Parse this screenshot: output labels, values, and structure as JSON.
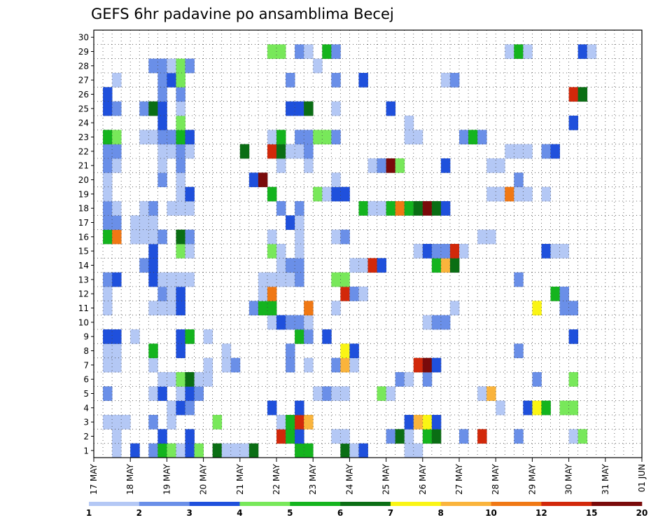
{
  "chart_data": {
    "type": "heatmap",
    "title": "GEFS 6hr padavine po ansamblima Becej",
    "xlabel": "",
    "ylabel": "",
    "y_categories": [
      "1",
      "2",
      "3",
      "4",
      "5",
      "6",
      "7",
      "8",
      "9",
      "10",
      "11",
      "12",
      "13",
      "14",
      "15",
      "16",
      "17",
      "18",
      "19",
      "20",
      "21",
      "22",
      "23",
      "24",
      "25",
      "26",
      "27",
      "28",
      "29",
      "30"
    ],
    "x_tick_labels": [
      "17 MAY",
      "18 MAY",
      "19 MAY",
      "20 MAY",
      "21 MAY",
      "22 MAY",
      "23 MAY",
      "24 MAY",
      "25 MAY",
      "26 MAY",
      "27 MAY",
      "28 MAY",
      "29 MAY",
      "30 MAY",
      "31 MAY",
      "01 JUN"
    ],
    "steps_per_day": 4,
    "grid": "dotted",
    "colorbar": {
      "position": "bottom",
      "tick_labels": [
        "1",
        "2",
        "3",
        "4",
        "5",
        "6",
        "7",
        "8",
        "10",
        "12",
        "15",
        "20"
      ],
      "colors": [
        "#b4c8f5",
        "#6a8fe8",
        "#1f50dc",
        "#78e85a",
        "#14b41e",
        "#0a6e14",
        "#faf514",
        "#fab43c",
        "#f07814",
        "#d2280a",
        "#7a0a0a"
      ]
    },
    "cells": [
      [
        2,
        1,
        1
      ],
      [
        2,
        2,
        1
      ],
      [
        4,
        1,
        1
      ],
      [
        4,
        1,
        3
      ],
      [
        6,
        1,
        2
      ],
      [
        7,
        1,
        5
      ],
      [
        8,
        1,
        4
      ],
      [
        9,
        1,
        1
      ],
      [
        10,
        1,
        3
      ],
      [
        11,
        1,
        4
      ],
      [
        13,
        1,
        6
      ],
      [
        14,
        1,
        1
      ],
      [
        15,
        1,
        1
      ],
      [
        16,
        1,
        1
      ],
      [
        17,
        1,
        6
      ],
      [
        22,
        1,
        5
      ],
      [
        23,
        1,
        5
      ],
      [
        27,
        1,
        6
      ],
      [
        28,
        1,
        1
      ],
      [
        29,
        1,
        3
      ],
      [
        34,
        1,
        1
      ],
      [
        35,
        1,
        1
      ],
      [
        2,
        2,
        1
      ],
      [
        7,
        2,
        3
      ],
      [
        10,
        2,
        3
      ],
      [
        20,
        2,
        9
      ],
      [
        20,
        2,
        10
      ],
      [
        21,
        2,
        9
      ],
      [
        21,
        2,
        5
      ],
      [
        22,
        2,
        6
      ],
      [
        22,
        2,
        3
      ],
      [
        26,
        2,
        1
      ],
      [
        27,
        2,
        1
      ],
      [
        32,
        2,
        2
      ],
      [
        33,
        2,
        6
      ],
      [
        34,
        2,
        1
      ],
      [
        36,
        2,
        5
      ],
      [
        37,
        2,
        6
      ],
      [
        40,
        2,
        2
      ],
      [
        42,
        2,
        10
      ],
      [
        46,
        2,
        2
      ],
      [
        52,
        2,
        1
      ],
      [
        53,
        2,
        4
      ],
      [
        1,
        3,
        1
      ],
      [
        2,
        3,
        1
      ],
      [
        3,
        3,
        1
      ],
      [
        6,
        3,
        2
      ],
      [
        8,
        3,
        1
      ],
      [
        13,
        3,
        4
      ],
      [
        20,
        3,
        1
      ],
      [
        21,
        3,
        5
      ],
      [
        22,
        3,
        10
      ],
      [
        23,
        3,
        8
      ],
      [
        34,
        3,
        3
      ],
      [
        35,
        3,
        8
      ],
      [
        36,
        3,
        7
      ],
      [
        37,
        3,
        3
      ],
      [
        8,
        4,
        1
      ],
      [
        9,
        4,
        3
      ],
      [
        10,
        4,
        2
      ],
      [
        19,
        4,
        3
      ],
      [
        22,
        4,
        3
      ],
      [
        44,
        4,
        1
      ],
      [
        47,
        4,
        3
      ],
      [
        48,
        4,
        7
      ],
      [
        49,
        4,
        5
      ],
      [
        51,
        4,
        4
      ],
      [
        52,
        4,
        4
      ],
      [
        1,
        5,
        2
      ],
      [
        6,
        5,
        1
      ],
      [
        7,
        5,
        3
      ],
      [
        9,
        5,
        1
      ],
      [
        10,
        5,
        3
      ],
      [
        11,
        5,
        2
      ],
      [
        24,
        5,
        1
      ],
      [
        25,
        5,
        2
      ],
      [
        26,
        5,
        1
      ],
      [
        27,
        5,
        1
      ],
      [
        31,
        5,
        4
      ],
      [
        32,
        5,
        1
      ],
      [
        42,
        5,
        1
      ],
      [
        43,
        5,
        8
      ],
      [
        7,
        6,
        1
      ],
      [
        8,
        6,
        1
      ],
      [
        9,
        6,
        4
      ],
      [
        10,
        6,
        6
      ],
      [
        11,
        6,
        1
      ],
      [
        12,
        6,
        1
      ],
      [
        33,
        6,
        2
      ],
      [
        34,
        6,
        1
      ],
      [
        36,
        6,
        2
      ],
      [
        48,
        6,
        2
      ],
      [
        52,
        6,
        4
      ],
      [
        1,
        7,
        1
      ],
      [
        2,
        7,
        1
      ],
      [
        6,
        7,
        1
      ],
      [
        12,
        7,
        1
      ],
      [
        14,
        7,
        1
      ],
      [
        15,
        7,
        2
      ],
      [
        21,
        7,
        2
      ],
      [
        23,
        7,
        1
      ],
      [
        26,
        7,
        2
      ],
      [
        27,
        7,
        8
      ],
      [
        28,
        7,
        1
      ],
      [
        35,
        7,
        10
      ],
      [
        36,
        7,
        11
      ],
      [
        37,
        7,
        3
      ],
      [
        1,
        8,
        1
      ],
      [
        2,
        8,
        1
      ],
      [
        6,
        8,
        5
      ],
      [
        9,
        8,
        3
      ],
      [
        14,
        8,
        1
      ],
      [
        21,
        8,
        2
      ],
      [
        27,
        8,
        7
      ],
      [
        28,
        8,
        3
      ],
      [
        46,
        8,
        2
      ],
      [
        1,
        9,
        3
      ],
      [
        2,
        9,
        3
      ],
      [
        4,
        9,
        1
      ],
      [
        9,
        9,
        3
      ],
      [
        10,
        9,
        5
      ],
      [
        12,
        9,
        1
      ],
      [
        22,
        9,
        5
      ],
      [
        23,
        9,
        2
      ],
      [
        25,
        9,
        3
      ],
      [
        52,
        9,
        3
      ],
      [
        19,
        10,
        1
      ],
      [
        20,
        10,
        3
      ],
      [
        21,
        10,
        2
      ],
      [
        22,
        10,
        2
      ],
      [
        23,
        10,
        1
      ],
      [
        36,
        10,
        1
      ],
      [
        37,
        10,
        2
      ],
      [
        38,
        10,
        2
      ],
      [
        1,
        11,
        1
      ],
      [
        6,
        11,
        1
      ],
      [
        7,
        11,
        1
      ],
      [
        8,
        11,
        1
      ],
      [
        9,
        11,
        3
      ],
      [
        17,
        11,
        2
      ],
      [
        18,
        11,
        5
      ],
      [
        19,
        11,
        5
      ],
      [
        23,
        11,
        9
      ],
      [
        26,
        11,
        1
      ],
      [
        39,
        11,
        1
      ],
      [
        48,
        11,
        7
      ],
      [
        51,
        11,
        2
      ],
      [
        52,
        11,
        2
      ],
      [
        1,
        12,
        1
      ],
      [
        7,
        12,
        2
      ],
      [
        8,
        12,
        1
      ],
      [
        9,
        12,
        3
      ],
      [
        18,
        12,
        1
      ],
      [
        19,
        12,
        9
      ],
      [
        27,
        12,
        10
      ],
      [
        28,
        12,
        2
      ],
      [
        29,
        12,
        1
      ],
      [
        50,
        12,
        5
      ],
      [
        51,
        12,
        2
      ],
      [
        1,
        13,
        2
      ],
      [
        2,
        13,
        3
      ],
      [
        6,
        13,
        3
      ],
      [
        7,
        13,
        1
      ],
      [
        8,
        13,
        1
      ],
      [
        9,
        13,
        1
      ],
      [
        10,
        13,
        1
      ],
      [
        18,
        13,
        1
      ],
      [
        19,
        13,
        1
      ],
      [
        20,
        13,
        1
      ],
      [
        21,
        13,
        1
      ],
      [
        22,
        13,
        2
      ],
      [
        26,
        13,
        4
      ],
      [
        27,
        13,
        4
      ],
      [
        46,
        13,
        2
      ],
      [
        5,
        14,
        2
      ],
      [
        6,
        14,
        3
      ],
      [
        20,
        14,
        1
      ],
      [
        21,
        14,
        2
      ],
      [
        22,
        14,
        2
      ],
      [
        28,
        14,
        1
      ],
      [
        29,
        14,
        1
      ],
      [
        30,
        14,
        10
      ],
      [
        31,
        14,
        3
      ],
      [
        37,
        14,
        5
      ],
      [
        38,
        14,
        8
      ],
      [
        39,
        14,
        6
      ],
      [
        6,
        15,
        3
      ],
      [
        9,
        15,
        4
      ],
      [
        10,
        15,
        1
      ],
      [
        19,
        15,
        4
      ],
      [
        20,
        15,
        1
      ],
      [
        22,
        15,
        1
      ],
      [
        35,
        15,
        1
      ],
      [
        36,
        15,
        3
      ],
      [
        37,
        15,
        2
      ],
      [
        38,
        15,
        2
      ],
      [
        39,
        15,
        10
      ],
      [
        40,
        15,
        1
      ],
      [
        49,
        15,
        3
      ],
      [
        50,
        15,
        1
      ],
      [
        51,
        15,
        1
      ],
      [
        1,
        16,
        5
      ],
      [
        2,
        16,
        9
      ],
      [
        4,
        16,
        1
      ],
      [
        5,
        16,
        1
      ],
      [
        6,
        16,
        1
      ],
      [
        7,
        16,
        2
      ],
      [
        9,
        16,
        6
      ],
      [
        10,
        16,
        2
      ],
      [
        19,
        16,
        1
      ],
      [
        22,
        16,
        1
      ],
      [
        26,
        16,
        1
      ],
      [
        27,
        16,
        2
      ],
      [
        42,
        16,
        1
      ],
      [
        43,
        16,
        1
      ],
      [
        1,
        17,
        2
      ],
      [
        2,
        17,
        2
      ],
      [
        4,
        17,
        1
      ],
      [
        5,
        17,
        1
      ],
      [
        6,
        17,
        1
      ],
      [
        21,
        17,
        3
      ],
      [
        22,
        17,
        1
      ],
      [
        1,
        18,
        2
      ],
      [
        2,
        18,
        1
      ],
      [
        5,
        18,
        1
      ],
      [
        6,
        18,
        2
      ],
      [
        8,
        18,
        1
      ],
      [
        9,
        18,
        1
      ],
      [
        10,
        18,
        1
      ],
      [
        20,
        18,
        2
      ],
      [
        22,
        18,
        2
      ],
      [
        29,
        18,
        5
      ],
      [
        30,
        18,
        1
      ],
      [
        31,
        18,
        1
      ],
      [
        32,
        18,
        5
      ],
      [
        33,
        18,
        9
      ],
      [
        34,
        18,
        5
      ],
      [
        35,
        18,
        6
      ],
      [
        36,
        18,
        11
      ],
      [
        37,
        18,
        6
      ],
      [
        38,
        18,
        3
      ],
      [
        1,
        19,
        1
      ],
      [
        9,
        19,
        1
      ],
      [
        10,
        19,
        3
      ],
      [
        19,
        19,
        5
      ],
      [
        24,
        19,
        4
      ],
      [
        25,
        19,
        1
      ],
      [
        26,
        19,
        3
      ],
      [
        27,
        19,
        3
      ],
      [
        43,
        19,
        1
      ],
      [
        44,
        19,
        1
      ],
      [
        45,
        19,
        9
      ],
      [
        46,
        19,
        1
      ],
      [
        47,
        19,
        1
      ],
      [
        49,
        19,
        1
      ],
      [
        1,
        20,
        1
      ],
      [
        7,
        20,
        2
      ],
      [
        9,
        20,
        1
      ],
      [
        17,
        20,
        3
      ],
      [
        18,
        20,
        11
      ],
      [
        26,
        20,
        1
      ],
      [
        46,
        20,
        2
      ],
      [
        1,
        21,
        2
      ],
      [
        2,
        21,
        1
      ],
      [
        7,
        21,
        1
      ],
      [
        9,
        21,
        2
      ],
      [
        20,
        21,
        1
      ],
      [
        23,
        21,
        1
      ],
      [
        30,
        21,
        1
      ],
      [
        31,
        21,
        2
      ],
      [
        32,
        21,
        11
      ],
      [
        33,
        21,
        4
      ],
      [
        38,
        21,
        3
      ],
      [
        43,
        21,
        1
      ],
      [
        44,
        21,
        1
      ],
      [
        1,
        22,
        2
      ],
      [
        2,
        22,
        2
      ],
      [
        7,
        22,
        1
      ],
      [
        8,
        22,
        1
      ],
      [
        9,
        22,
        2
      ],
      [
        10,
        22,
        1
      ],
      [
        16,
        22,
        6
      ],
      [
        19,
        22,
        10
      ],
      [
        20,
        22,
        6
      ],
      [
        21,
        22,
        1
      ],
      [
        22,
        22,
        1
      ],
      [
        23,
        22,
        2
      ],
      [
        45,
        22,
        1
      ],
      [
        46,
        22,
        1
      ],
      [
        47,
        22,
        1
      ],
      [
        49,
        22,
        2
      ],
      [
        50,
        22,
        3
      ],
      [
        1,
        23,
        5
      ],
      [
        2,
        23,
        4
      ],
      [
        5,
        23,
        1
      ],
      [
        6,
        23,
        1
      ],
      [
        7,
        23,
        2
      ],
      [
        8,
        23,
        2
      ],
      [
        9,
        23,
        5
      ],
      [
        10,
        23,
        3
      ],
      [
        19,
        23,
        1
      ],
      [
        20,
        23,
        5
      ],
      [
        22,
        23,
        2
      ],
      [
        23,
        23,
        2
      ],
      [
        24,
        23,
        4
      ],
      [
        25,
        23,
        4
      ],
      [
        26,
        23,
        2
      ],
      [
        34,
        23,
        1
      ],
      [
        35,
        23,
        1
      ],
      [
        40,
        23,
        2
      ],
      [
        41,
        23,
        5
      ],
      [
        42,
        23,
        2
      ],
      [
        7,
        24,
        3
      ],
      [
        9,
        24,
        4
      ],
      [
        34,
        24,
        1
      ],
      [
        52,
        24,
        3
      ],
      [
        1,
        25,
        3
      ],
      [
        2,
        25,
        2
      ],
      [
        5,
        25,
        2
      ],
      [
        6,
        25,
        6
      ],
      [
        7,
        25,
        3
      ],
      [
        9,
        25,
        1
      ],
      [
        21,
        25,
        3
      ],
      [
        22,
        25,
        3
      ],
      [
        23,
        25,
        6
      ],
      [
        26,
        25,
        1
      ],
      [
        32,
        25,
        3
      ],
      [
        1,
        26,
        3
      ],
      [
        7,
        26,
        2
      ],
      [
        9,
        26,
        2
      ],
      [
        52,
        26,
        10
      ],
      [
        53,
        26,
        6
      ],
      [
        2,
        27,
        1
      ],
      [
        7,
        27,
        2
      ],
      [
        8,
        27,
        3
      ],
      [
        9,
        27,
        4
      ],
      [
        21,
        27,
        2
      ],
      [
        26,
        27,
        2
      ],
      [
        29,
        27,
        3
      ],
      [
        38,
        27,
        1
      ],
      [
        39,
        27,
        2
      ],
      [
        6,
        28,
        2
      ],
      [
        7,
        28,
        2
      ],
      [
        8,
        28,
        1
      ],
      [
        9,
        28,
        4
      ],
      [
        10,
        28,
        2
      ],
      [
        24,
        28,
        1
      ],
      [
        19,
        29,
        4
      ],
      [
        20,
        29,
        4
      ],
      [
        22,
        29,
        2
      ],
      [
        23,
        29,
        1
      ],
      [
        25,
        29,
        5
      ],
      [
        26,
        29,
        2
      ],
      [
        45,
        29,
        1
      ],
      [
        46,
        29,
        5
      ],
      [
        47,
        29,
        1
      ],
      [
        53,
        29,
        3
      ],
      [
        54,
        29,
        1
      ]
    ]
  }
}
